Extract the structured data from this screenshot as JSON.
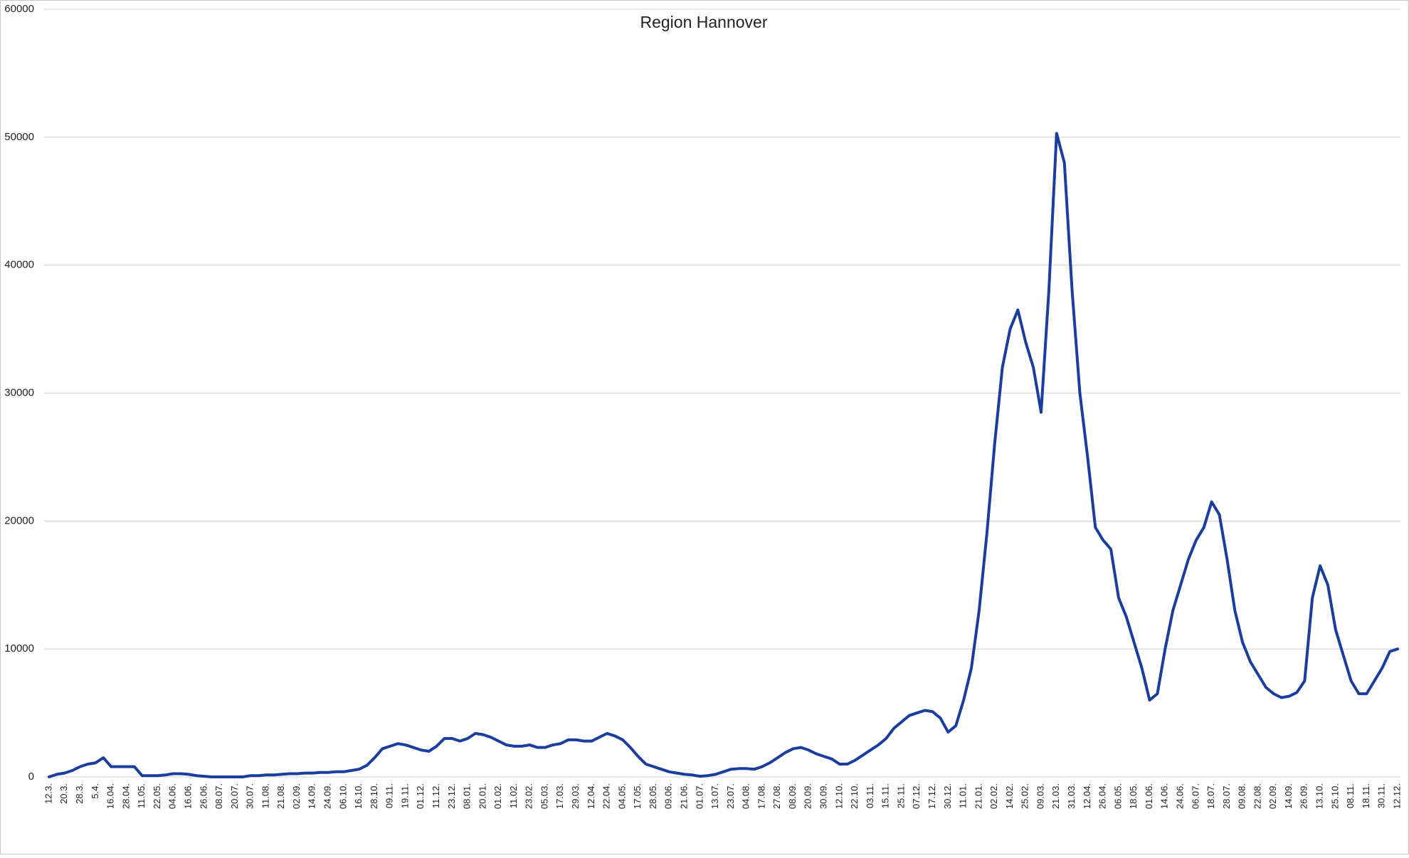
{
  "chart_data": {
    "type": "line",
    "title": "Region Hannover",
    "categories": [
      "12.3.",
      null,
      "20.3.",
      null,
      "28.3.",
      null,
      "5.4.",
      null,
      "16.04.",
      null,
      "28.04.",
      null,
      "11.05.",
      null,
      "22.05.",
      null,
      "04.06.",
      null,
      "16.06.",
      null,
      "26.06.",
      null,
      "08.07.",
      null,
      "20.07.",
      null,
      "30.07.",
      null,
      "11.08.",
      null,
      "21.08.",
      null,
      "02.09.",
      null,
      "14.09.",
      null,
      "24.09.",
      null,
      "06.10.",
      null,
      "16.10.",
      null,
      "28.10.",
      null,
      "09.11.",
      null,
      "19.11.",
      null,
      "01.12.",
      null,
      "11.12.",
      null,
      "23.12.",
      null,
      "08.01.",
      null,
      "20.01.",
      null,
      "01.02.",
      null,
      "11.02.",
      null,
      "23.02.",
      null,
      "05.03.",
      null,
      "17.03.",
      null,
      "29.03.",
      null,
      "12.04.",
      null,
      "22.04.",
      null,
      "04.05.",
      null,
      "17.05.",
      null,
      "28.05.",
      null,
      "09.06.",
      null,
      "21.06.",
      null,
      "01.07.",
      null,
      "13.07.",
      null,
      "23.07.",
      null,
      "04.08.",
      null,
      "17.08.",
      null,
      "27.08.",
      null,
      "08.09.",
      null,
      "20.09.",
      null,
      "30.09.",
      null,
      "12.10.",
      null,
      "22.10.",
      null,
      "03.11.",
      null,
      "15.11.",
      null,
      "25.11.",
      null,
      "07.12.",
      null,
      "17.12.",
      null,
      "30.12.",
      null,
      "11.01.",
      null,
      "21.01.",
      null,
      "02.02.",
      null,
      "14.02.",
      null,
      "25.02.",
      null,
      "09.03.",
      null,
      "21.03.",
      null,
      "31.03.",
      null,
      "12.04.",
      null,
      "26.04.",
      null,
      "06.05.",
      null,
      "18.05.",
      null,
      "01.06.",
      null,
      "14.06.",
      null,
      "24.06.",
      null,
      "06.07.",
      null,
      "18.07.",
      null,
      "28.07.",
      null,
      "09.08.",
      null,
      "22.08.",
      null,
      "02.09.",
      null,
      "14.09.",
      null,
      "26.09.",
      null,
      "13.10.",
      null,
      "25.10.",
      null,
      "08.11.",
      null,
      "18.11.",
      null,
      "30.11.",
      null,
      "12.12."
    ],
    "values": [
      0,
      200,
      300,
      500,
      800,
      1000,
      1100,
      1500,
      800,
      800,
      800,
      800,
      100,
      100,
      100,
      150,
      250,
      250,
      200,
      100,
      50,
      0,
      0,
      0,
      0,
      0,
      100,
      100,
      150,
      150,
      200,
      250,
      250,
      300,
      300,
      350,
      350,
      400,
      400,
      500,
      600,
      900,
      1500,
      2200,
      2400,
      2600,
      2500,
      2300,
      2100,
      2000,
      2400,
      3000,
      3000,
      2800,
      3000,
      3400,
      3300,
      3100,
      2800,
      2500,
      2400,
      2400,
      2500,
      2300,
      2300,
      2500,
      2600,
      2900,
      2900,
      2800,
      2800,
      3100,
      3400,
      3200,
      2900,
      2300,
      1600,
      1000,
      800,
      600,
      400,
      300,
      200,
      150,
      50,
      100,
      200,
      400,
      600,
      650,
      650,
      600,
      800,
      1100,
      1500,
      1900,
      2200,
      2300,
      2100,
      1800,
      1600,
      1400,
      1000,
      1000,
      1300,
      1700,
      2100,
      2500,
      3000,
      3800,
      4300,
      4800,
      5000,
      5200,
      5100,
      4600,
      3500,
      4000,
      6000,
      8500,
      13000,
      19000,
      26000,
      32000,
      35000,
      36500,
      34000,
      32000,
      28500,
      38000,
      50300,
      48000,
      38000,
      30000,
      25000,
      19500,
      18500,
      17800,
      14000,
      12500,
      10500,
      8500,
      6000,
      6500,
      10000,
      13000,
      15000,
      17000,
      18500,
      19500,
      21500,
      20500,
      17000,
      13000,
      10500,
      9000,
      8000,
      7000,
      6500,
      6200,
      6300,
      6600,
      7500,
      14000,
      16500,
      15000,
      11500,
      9500,
      7500,
      6500,
      6500,
      7500,
      8500,
      9800,
      10000
    ],
    "color": "#1a3d9e",
    "ylim": [
      0,
      60000
    ],
    "yticks": [
      0,
      10000,
      20000,
      30000,
      40000,
      50000,
      60000
    ],
    "grid": true
  }
}
